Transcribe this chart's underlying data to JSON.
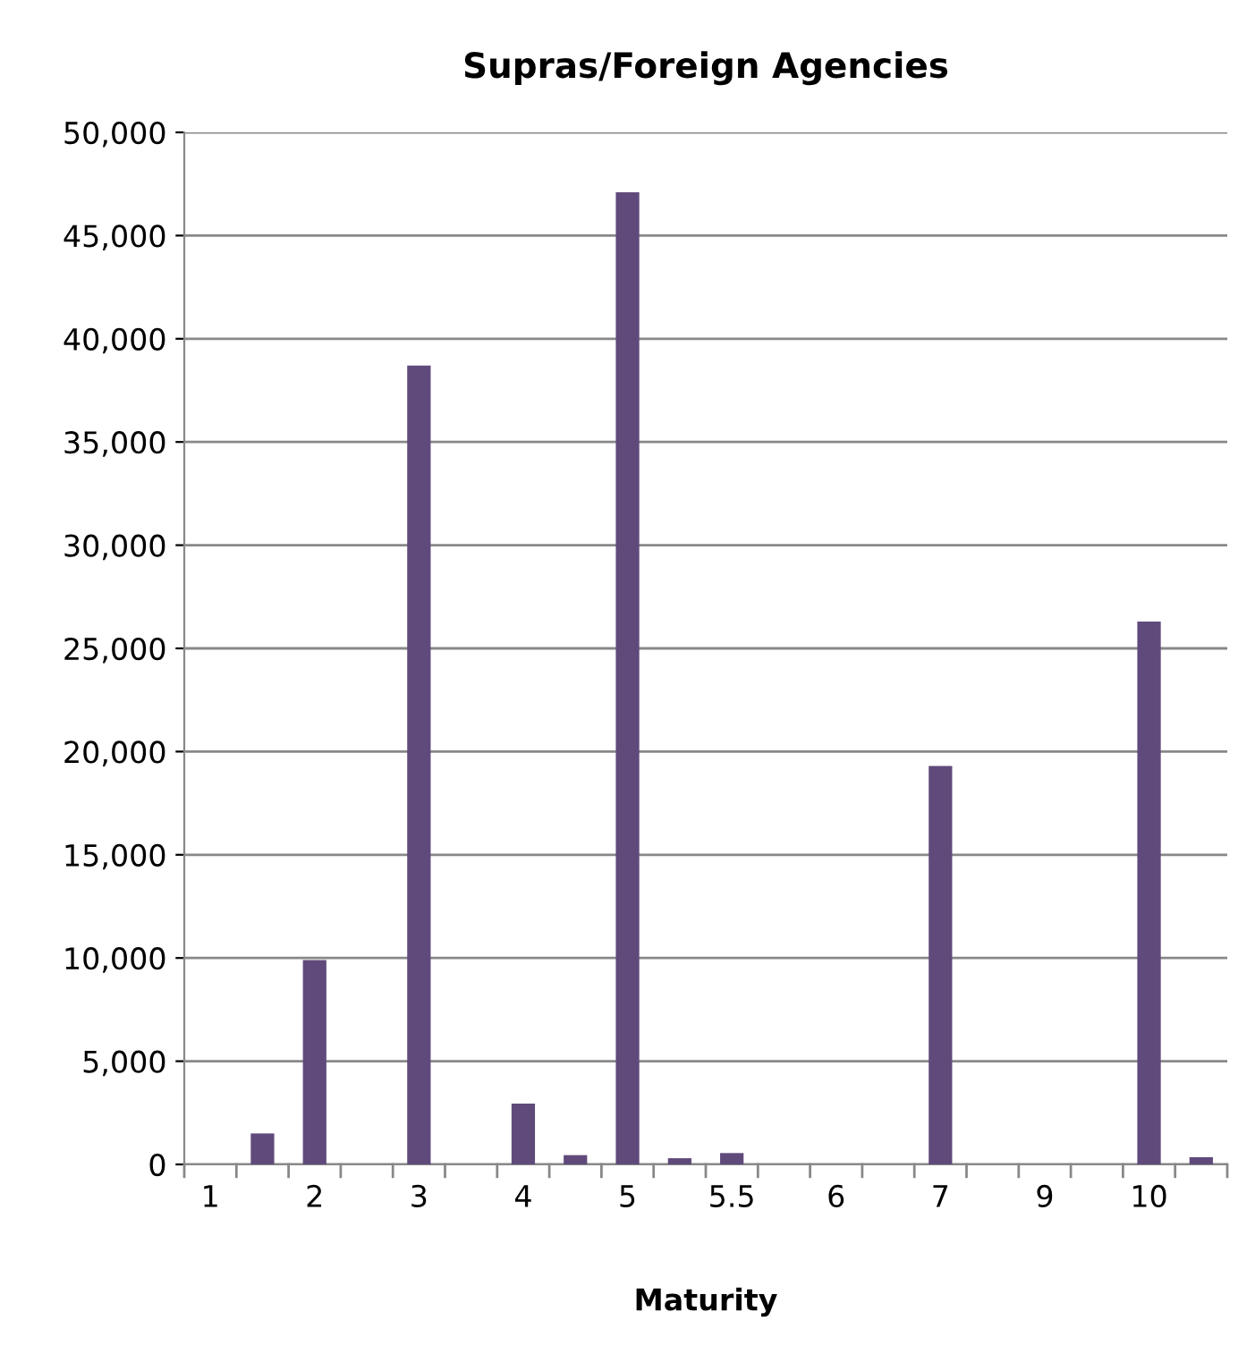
{
  "chart_data": {
    "type": "bar",
    "title": "Supras/Foreign Agencies",
    "xlabel": "Maturity",
    "categories": [
      "1",
      null,
      "2",
      null,
      "3",
      null,
      "4",
      null,
      "5",
      null,
      "5.5",
      null,
      "6",
      null,
      "7",
      null,
      "9",
      null,
      "10",
      null
    ],
    "values": [
      0,
      1500,
      9900,
      0,
      38700,
      0,
      2950,
      450,
      47100,
      300,
      550,
      0,
      0,
      0,
      19300,
      0,
      0,
      0,
      26300,
      350
    ],
    "color": "#604a7b",
    "ylim": [
      0,
      50000
    ],
    "yticks": [
      {
        "value": 0,
        "label": "0"
      },
      {
        "value": 5000,
        "label": "5,000"
      },
      {
        "value": 10000,
        "label": "10,000"
      },
      {
        "value": 15000,
        "label": "15,000"
      },
      {
        "value": 20000,
        "label": "20,000"
      },
      {
        "value": 25000,
        "label": "25,000"
      },
      {
        "value": 30000,
        "label": "30,000"
      },
      {
        "value": 35000,
        "label": "35,000"
      },
      {
        "value": 40000,
        "label": "40,000"
      },
      {
        "value": 45000,
        "label": "45,000"
      },
      {
        "value": 50000,
        "label": "50,000"
      }
    ],
    "grid": "y"
  }
}
